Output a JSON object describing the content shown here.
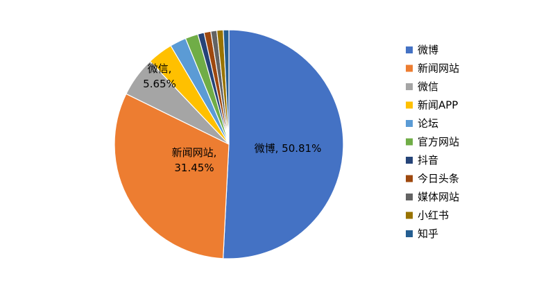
{
  "chart_data": {
    "type": "pie",
    "title": "",
    "legend_position": "right",
    "slices": [
      {
        "name": "微博",
        "value": 50.81,
        "color": "#4472C4",
        "label_lines": [
          "微博, 50.81%"
        ]
      },
      {
        "name": "新闻网站",
        "value": 31.45,
        "color": "#ED7D31",
        "label_lines": [
          "新闻网站,",
          "31.45%"
        ]
      },
      {
        "name": "微信",
        "value": 5.65,
        "color": "#A5A5A5",
        "label_lines": [
          "微信,",
          "5.65%"
        ]
      },
      {
        "name": "新闻APP",
        "value": 3.6,
        "color": "#FFC000",
        "label_lines": []
      },
      {
        "name": "论坛",
        "value": 2.3,
        "color": "#5B9BD5",
        "label_lines": []
      },
      {
        "name": "官方网站",
        "value": 1.8,
        "color": "#70AD47",
        "label_lines": []
      },
      {
        "name": "抖音",
        "value": 0.9,
        "color": "#264478",
        "label_lines": []
      },
      {
        "name": "今日头条",
        "value": 0.95,
        "color": "#9E480E",
        "label_lines": []
      },
      {
        "name": "媒体网站",
        "value": 0.85,
        "color": "#636363",
        "label_lines": []
      },
      {
        "name": "小红书",
        "value": 0.9,
        "color": "#997300",
        "label_lines": []
      },
      {
        "name": "知乎",
        "value": 0.79,
        "color": "#255E91",
        "label_lines": []
      }
    ]
  }
}
